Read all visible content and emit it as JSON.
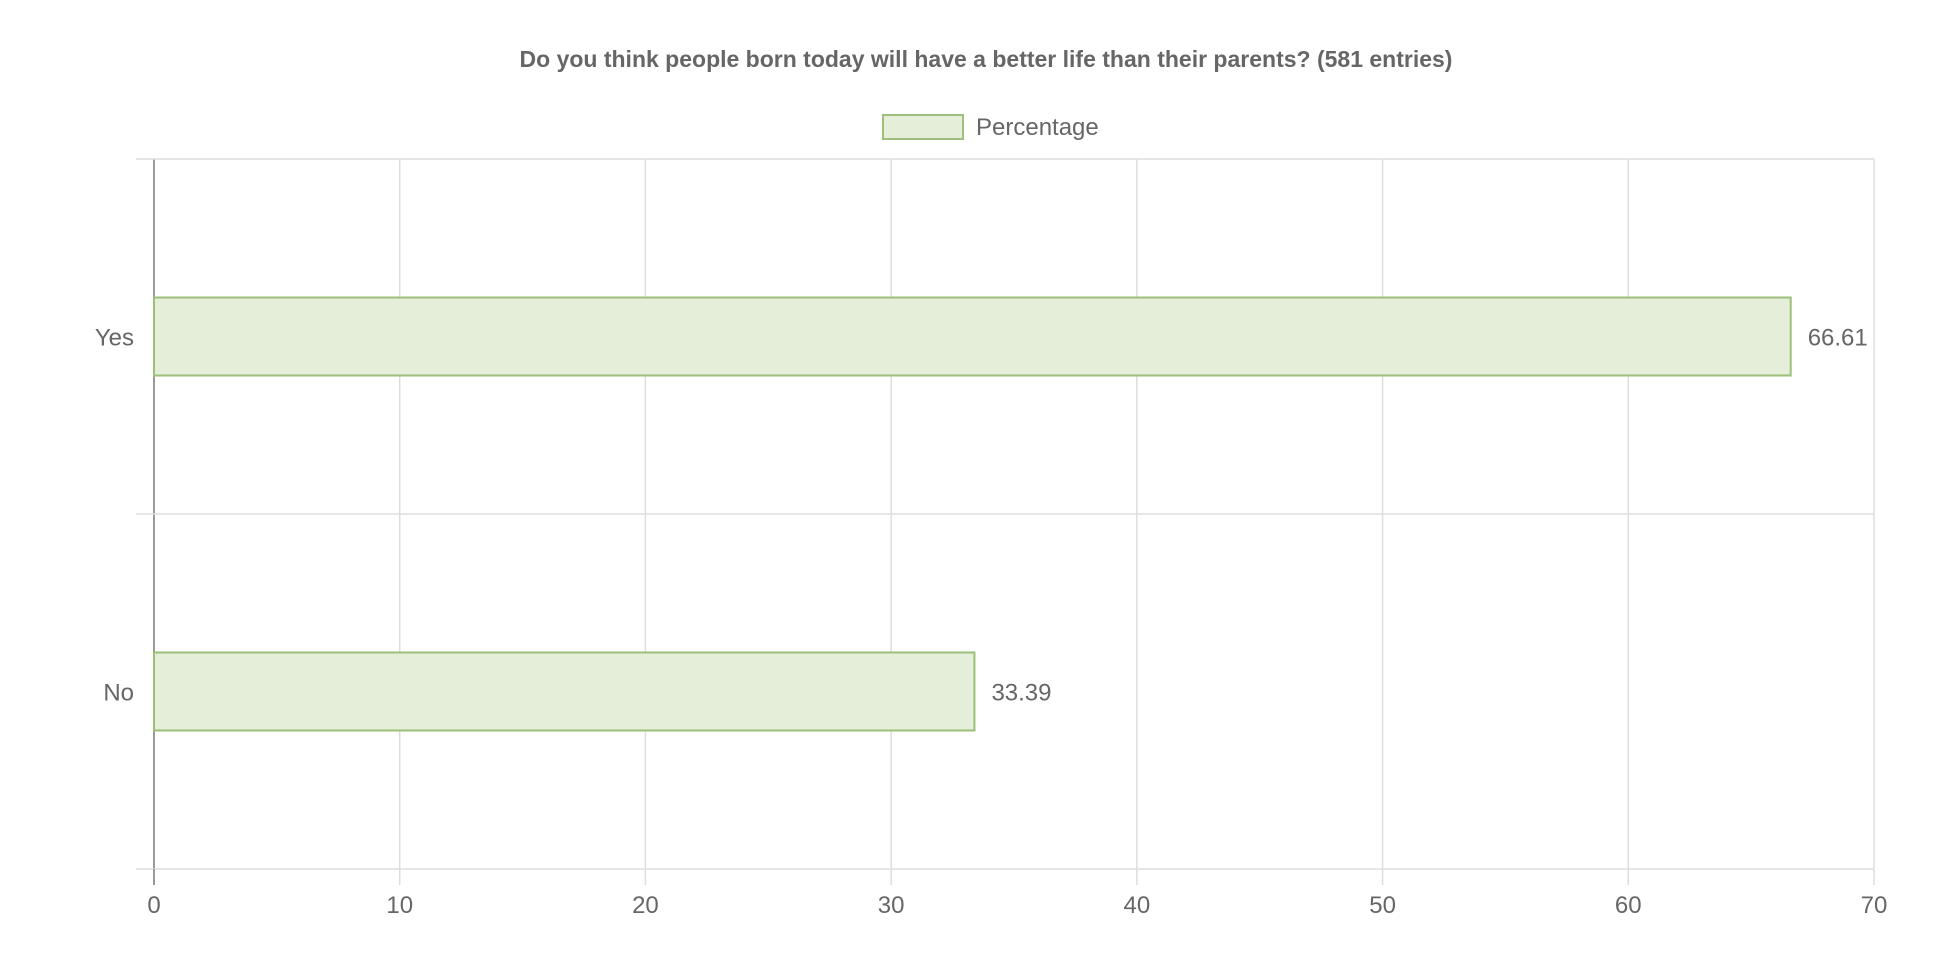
{
  "chart_data": {
    "type": "bar",
    "orientation": "horizontal",
    "title": "Do you think people born today will have a better life than their parents? (581 entries)",
    "categories": [
      "Yes",
      "No"
    ],
    "series": [
      {
        "name": "Percentage",
        "values": [
          66.61,
          33.39
        ]
      }
    ],
    "data_labels": [
      "66.61",
      "33.39"
    ],
    "xlim": [
      0,
      70
    ],
    "x_ticks": [
      "0",
      "10",
      "20",
      "30",
      "40",
      "50",
      "60",
      "70"
    ],
    "grid": true,
    "legend_position": "top",
    "colors": {
      "bar_fill": "#e5eed9",
      "bar_stroke": "#9dbf7a",
      "grid": "#dddddd",
      "axis": "#999999",
      "text": "#666666"
    }
  }
}
